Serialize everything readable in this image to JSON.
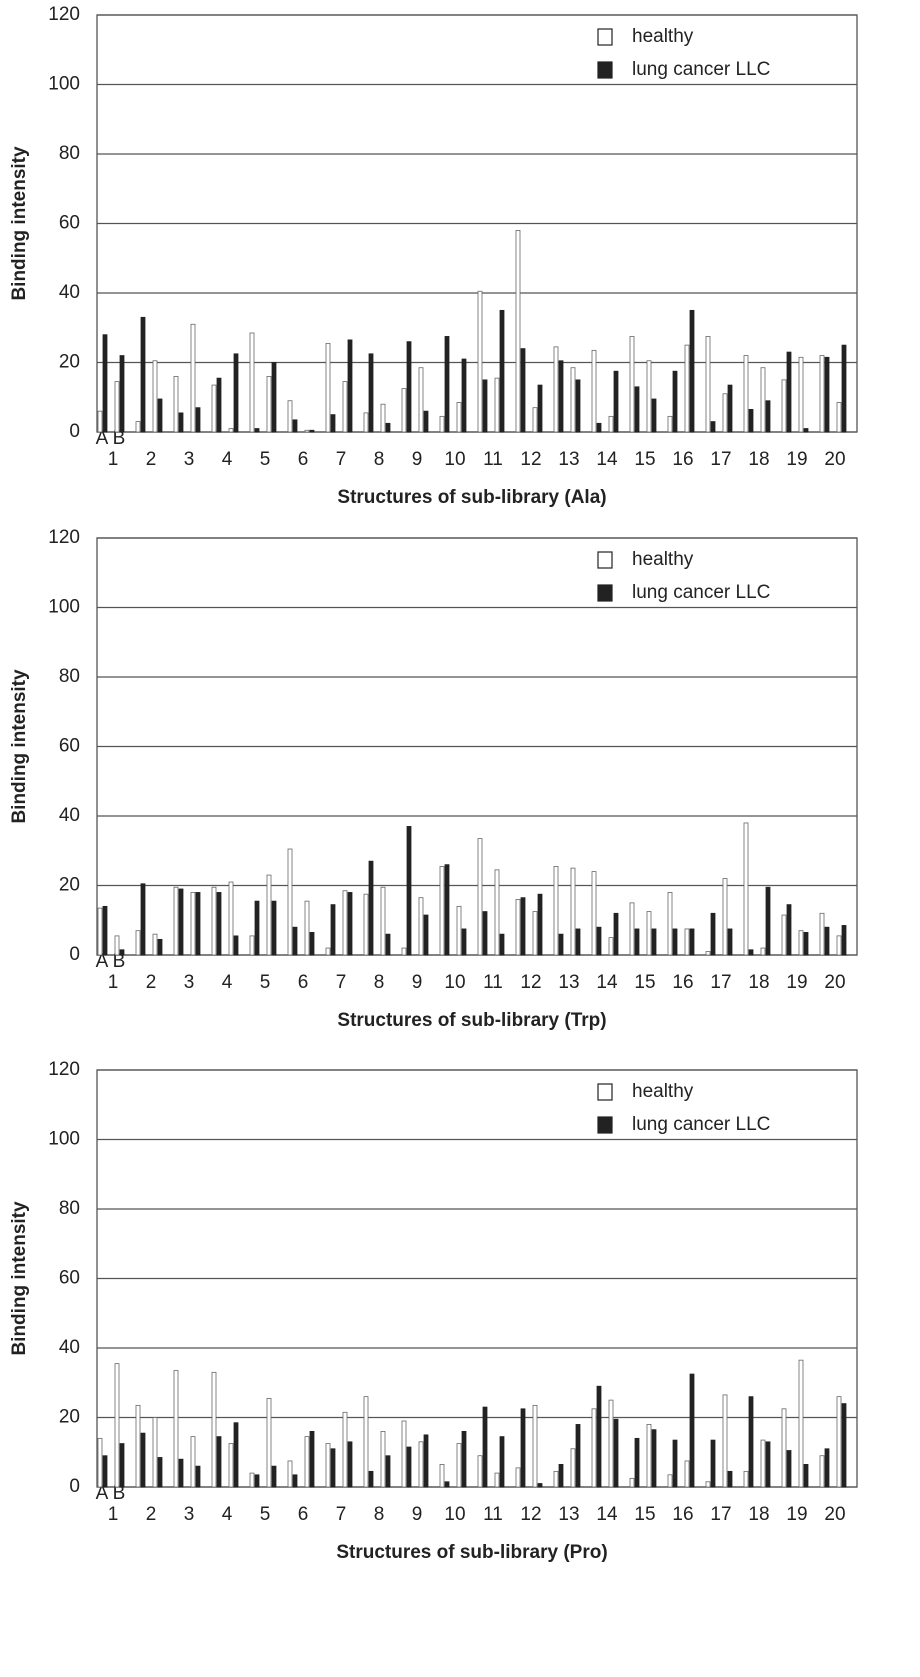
{
  "chart_data": [
    {
      "type": "bar",
      "xlabel": "Structures of sub-library (Ala)",
      "ylabel": "Binding intensity",
      "categories": [
        "1",
        "2",
        "3",
        "4",
        "5",
        "6",
        "7",
        "8",
        "9",
        "10",
        "11",
        "12",
        "13",
        "14",
        "15",
        "16",
        "17",
        "18",
        "19",
        "20"
      ],
      "subgroups": [
        "A",
        "B"
      ],
      "ylim": [
        0,
        120
      ],
      "yticks": [
        0,
        20,
        40,
        60,
        80,
        100,
        120
      ],
      "grid": true,
      "legend": "upper right",
      "series": [
        {
          "name": "healthy",
          "color": "#ffffff",
          "values": [
            [
              6,
              14.5
            ],
            [
              3,
              20.5
            ],
            [
              16,
              31
            ],
            [
              13.5,
              1
            ],
            [
              28.5,
              16
            ],
            [
              9,
              0.5
            ],
            [
              25.5,
              14.5
            ],
            [
              5.5,
              8
            ],
            [
              12.5,
              18.5
            ],
            [
              4.5,
              8.5
            ],
            [
              40.5,
              15.5
            ],
            [
              58,
              7
            ],
            [
              24.5,
              18.5
            ],
            [
              23.5,
              4.5
            ],
            [
              27.5,
              20.5
            ],
            [
              4.5,
              25
            ],
            [
              27.5,
              11
            ],
            [
              22,
              18.5
            ],
            [
              15,
              21.5
            ],
            [
              22,
              8.5
            ]
          ]
        },
        {
          "name": "lung cancer LLC",
          "color": "#222222",
          "values": [
            [
              28,
              22
            ],
            [
              33,
              9.5
            ],
            [
              5.5,
              7
            ],
            [
              15.5,
              22.5
            ],
            [
              1,
              20
            ],
            [
              3.5,
              0.5
            ],
            [
              5,
              26.5
            ],
            [
              22.5,
              2.5
            ],
            [
              26,
              6
            ],
            [
              27.5,
              21
            ],
            [
              15,
              35
            ],
            [
              24,
              13.5
            ],
            [
              20.5,
              15
            ],
            [
              2.5,
              17.5
            ],
            [
              13,
              9.5
            ],
            [
              17.5,
              35
            ],
            [
              3,
              13.5
            ],
            [
              6.5,
              9
            ],
            [
              23,
              1
            ],
            [
              21.5,
              25
            ]
          ]
        }
      ]
    },
    {
      "type": "bar",
      "xlabel": "Structures of sub-library (Trp)",
      "ylabel": "Binding intensity",
      "categories": [
        "1",
        "2",
        "3",
        "4",
        "5",
        "6",
        "7",
        "8",
        "9",
        "10",
        "11",
        "12",
        "13",
        "14",
        "15",
        "16",
        "17",
        "18",
        "19",
        "20"
      ],
      "subgroups": [
        "A",
        "B"
      ],
      "ylim": [
        0,
        120
      ],
      "yticks": [
        0,
        20,
        40,
        60,
        80,
        100,
        120
      ],
      "grid": true,
      "legend": "upper right",
      "series": [
        {
          "name": "healthy",
          "color": "#ffffff",
          "values": [
            [
              13.5,
              5.5
            ],
            [
              7,
              6
            ],
            [
              19.5,
              18
            ],
            [
              19.5,
              21
            ],
            [
              5.5,
              23
            ],
            [
              30.5,
              15.5
            ],
            [
              2,
              18.5
            ],
            [
              17.5,
              19.5
            ],
            [
              2,
              16.5
            ],
            [
              25.5,
              14
            ],
            [
              33.5,
              24.5
            ],
            [
              16,
              12.5
            ],
            [
              25.5,
              25
            ],
            [
              24,
              5
            ],
            [
              15,
              12.5
            ],
            [
              18,
              7.5
            ],
            [
              1,
              22
            ],
            [
              38,
              2
            ],
            [
              11.5,
              7
            ],
            [
              12,
              5.5
            ]
          ]
        },
        {
          "name": "lung cancer LLC",
          "color": "#222222",
          "values": [
            [
              14,
              1.5
            ],
            [
              20.5,
              4.5
            ],
            [
              19,
              18
            ],
            [
              18,
              5.5
            ],
            [
              15.5,
              15.5
            ],
            [
              8,
              6.5
            ],
            [
              14.5,
              18
            ],
            [
              27,
              6
            ],
            [
              37,
              11.5
            ],
            [
              26,
              7.5
            ],
            [
              12.5,
              6
            ],
            [
              16.5,
              17.5
            ],
            [
              6,
              7.5
            ],
            [
              8,
              12
            ],
            [
              7.5,
              7.5
            ],
            [
              7.5,
              7.5
            ],
            [
              12,
              7.5
            ],
            [
              1.5,
              19.5
            ],
            [
              14.5,
              6.5
            ],
            [
              8,
              8.5
            ]
          ]
        }
      ]
    },
    {
      "type": "bar",
      "xlabel": "Structures of sub-library (Pro)",
      "ylabel": "Binding intensity",
      "categories": [
        "1",
        "2",
        "3",
        "4",
        "5",
        "6",
        "7",
        "8",
        "9",
        "10",
        "11",
        "12",
        "13",
        "14",
        "15",
        "16",
        "17",
        "18",
        "19",
        "20"
      ],
      "subgroups": [
        "A",
        "B"
      ],
      "ylim": [
        0,
        120
      ],
      "yticks": [
        0,
        20,
        40,
        60,
        80,
        100,
        120
      ],
      "grid": true,
      "legend": "upper right",
      "series": [
        {
          "name": "healthy",
          "color": "#ffffff",
          "values": [
            [
              14,
              35.5
            ],
            [
              23.5,
              20
            ],
            [
              33.5,
              14.5
            ],
            [
              33,
              12.5
            ],
            [
              4,
              25.5
            ],
            [
              7.5,
              14.5
            ],
            [
              12.5,
              21.5
            ],
            [
              26,
              16
            ],
            [
              19,
              13
            ],
            [
              6.5,
              12.5
            ],
            [
              9,
              4
            ],
            [
              5.5,
              23.5
            ],
            [
              4.5,
              11
            ],
            [
              22.5,
              25
            ],
            [
              2.5,
              18
            ],
            [
              3.5,
              7.5
            ],
            [
              1.5,
              26.5
            ],
            [
              4.5,
              13.5
            ],
            [
              22.5,
              36.5
            ],
            [
              9,
              26
            ]
          ]
        },
        {
          "name": "lung cancer LLC",
          "color": "#222222",
          "values": [
            [
              9,
              12.5
            ],
            [
              15.5,
              8.5
            ],
            [
              8,
              6
            ],
            [
              14.5,
              18.5
            ],
            [
              3.5,
              6
            ],
            [
              3.5,
              16
            ],
            [
              11,
              13
            ],
            [
              4.5,
              9
            ],
            [
              11.5,
              15
            ],
            [
              1.5,
              16
            ],
            [
              23,
              14.5
            ],
            [
              22.5,
              1
            ],
            [
              6.5,
              18
            ],
            [
              29,
              19.5
            ],
            [
              14,
              16.5
            ],
            [
              13.5,
              32.5
            ],
            [
              13.5,
              4.5
            ],
            [
              26,
              13
            ],
            [
              10.5,
              6.5
            ],
            [
              11,
              24
            ]
          ]
        }
      ]
    }
  ]
}
